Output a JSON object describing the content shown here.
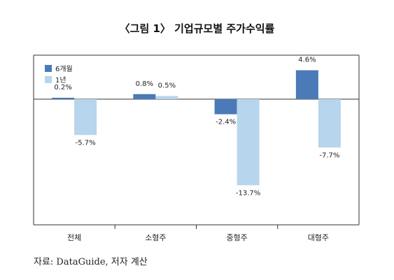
{
  "title": "〈그림 1〉 기업규모별 주가수익률",
  "source": "자료: DataGuide, 저자 계산",
  "chart_data": {
    "type": "bar",
    "categories": [
      "전체",
      "소형주",
      "중형주",
      "대형주"
    ],
    "series": [
      {
        "name": "6개월",
        "values": [
          0.2,
          0.8,
          -2.4,
          4.6
        ],
        "labels": [
          "0.2%",
          "0.8%",
          "-2.4%",
          "4.6%"
        ],
        "color": "#4a7ab8"
      },
      {
        "name": "1년",
        "values": [
          -5.7,
          0.5,
          -13.7,
          -7.7
        ],
        "labels": [
          "-5.7%",
          "0.5%",
          "-13.7%",
          "-7.7%"
        ],
        "color": "#b7d5ec"
      }
    ],
    "ylim": [
      -20,
      7
    ],
    "legend": "top-left",
    "grid": false
  }
}
